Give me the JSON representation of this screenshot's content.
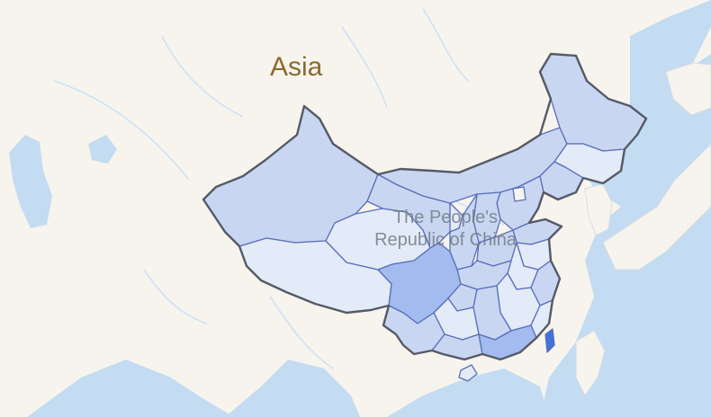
{
  "map": {
    "continent_label": "Asia",
    "country_label_line1": "The People's",
    "country_label_line2": "Republic of China",
    "colors": {
      "land": "#f7f4ee",
      "water": "#c4dcf1",
      "river": "#cfe2f4",
      "region_border": "#5a6fb8",
      "country_border": "#555a66",
      "shade_light": "#e3eaf8",
      "shade_mid": "#c9d6f2",
      "shade_strong": "#a3bbef",
      "shade_highlight": "#3e74dc"
    }
  }
}
